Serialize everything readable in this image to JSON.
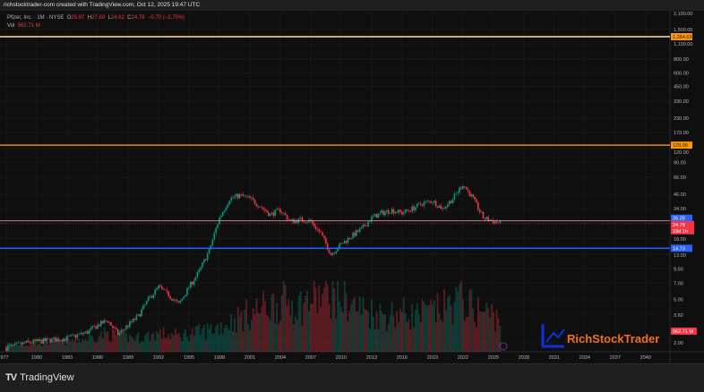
{
  "header": {
    "credit": "richstocktrader-com created with TradingView.com, Oct 12, 2025 19:47 UTC"
  },
  "legend": {
    "symbol": "Pfizer, Inc. · 1M · NYSE",
    "o_label": "O",
    "open": "25.97",
    "h_label": "H",
    "high": "27.69",
    "l_label": "L",
    "low": "24.62",
    "c_label": "C",
    "close": "24.78",
    "change": "−0.70 (−2.75%)",
    "vol_label": "Vol",
    "volume": "562.71 M"
  },
  "colors": {
    "up": "#089981",
    "down": "#f23645",
    "bg": "#0f0f0f",
    "orange": "#ff9800",
    "blue": "#2962ff"
  },
  "price_axis": {
    "ticks": [
      "2,100.00",
      "1,500.00",
      "1,100.00",
      "800.00",
      "600.00",
      "450.00",
      "330.00",
      "230.00",
      "170.00",
      "120.00",
      "90.00",
      "66.00",
      "46.00",
      "34.00",
      "18.00",
      "13.00",
      "9.50",
      "7.00",
      "5.00",
      "3.60",
      "2.00"
    ],
    "tick_values": [
      2100,
      1500,
      1100,
      800,
      600,
      450,
      330,
      230,
      170,
      120,
      90,
      66,
      46,
      34,
      18,
      13,
      9.5,
      7,
      5,
      3.6,
      2
    ]
  },
  "levels": [
    {
      "value": 1284.63,
      "label": "1,284.63",
      "color": "#ff9800",
      "line": "#f5e6a8"
    },
    {
      "value": 129.99,
      "label": "129.99",
      "color": "#ff9800",
      "line": "#ff9800"
    },
    {
      "value": 26.28,
      "label": "26.28",
      "color": "#2962ff",
      "line": "#e8b4b8"
    },
    {
      "value": 14.73,
      "label": "14.73",
      "color": "#2962ff",
      "line": "#2962ff"
    }
  ],
  "current_price": {
    "value": 24.78,
    "label": "24.78",
    "countdown": "19d 1h"
  },
  "volume_badge": "562.71 M",
  "time_axis": [
    "977",
    "1980",
    "1983",
    "1986",
    "1989",
    "1992",
    "1995",
    "1998",
    "2001",
    "2004",
    "2007",
    "2010",
    "2013",
    "2016",
    "2019",
    "2022",
    "2025",
    "2028",
    "2031",
    "2034",
    "2037",
    "2040"
  ],
  "watermark": {
    "text": "RichStockTrader"
  },
  "footer": {
    "brand": "TradingView"
  },
  "chart_data": {
    "type": "line",
    "scale": "log",
    "x": [
      1977,
      1979,
      1981,
      1983,
      1985,
      1986,
      1987,
      1988,
      1990,
      1991,
      1992,
      1993,
      1994,
      1995,
      1996,
      1997,
      1998,
      1999,
      2000,
      2001,
      2002,
      2003,
      2004,
      2005,
      2006,
      2007,
      2008,
      2009,
      2010,
      2011,
      2012,
      2013,
      2014,
      2015,
      2016,
      2017,
      2018,
      2019,
      2020,
      2021,
      2022,
      2023,
      2024,
      2025.75
    ],
    "price": [
      1.8,
      2.0,
      2.1,
      2.2,
      2.5,
      2.9,
      3.2,
      2.4,
      3.5,
      5.0,
      6.5,
      5.5,
      4.5,
      6.5,
      9,
      14,
      28,
      42,
      45,
      42,
      36,
      30,
      33,
      26,
      27,
      26,
      20,
      13,
      16,
      19,
      22,
      28,
      31,
      33,
      31,
      34,
      38,
      40,
      34,
      42,
      57,
      42,
      28,
      24.78
    ],
    "volume_millions": [
      120,
      130,
      150,
      180,
      220,
      260,
      300,
      250,
      230,
      260,
      300,
      280,
      260,
      300,
      320,
      360,
      420,
      480,
      560,
      620,
      700,
      760,
      800,
      820,
      760,
      850,
      900,
      950,
      880,
      780,
      700,
      650,
      600,
      620,
      640,
      600,
      620,
      650,
      700,
      800,
      850,
      700,
      650,
      562.71
    ],
    "ylim": [
      1.75,
      2400
    ],
    "xlim": [
      1976.8,
      2043.5
    ]
  }
}
